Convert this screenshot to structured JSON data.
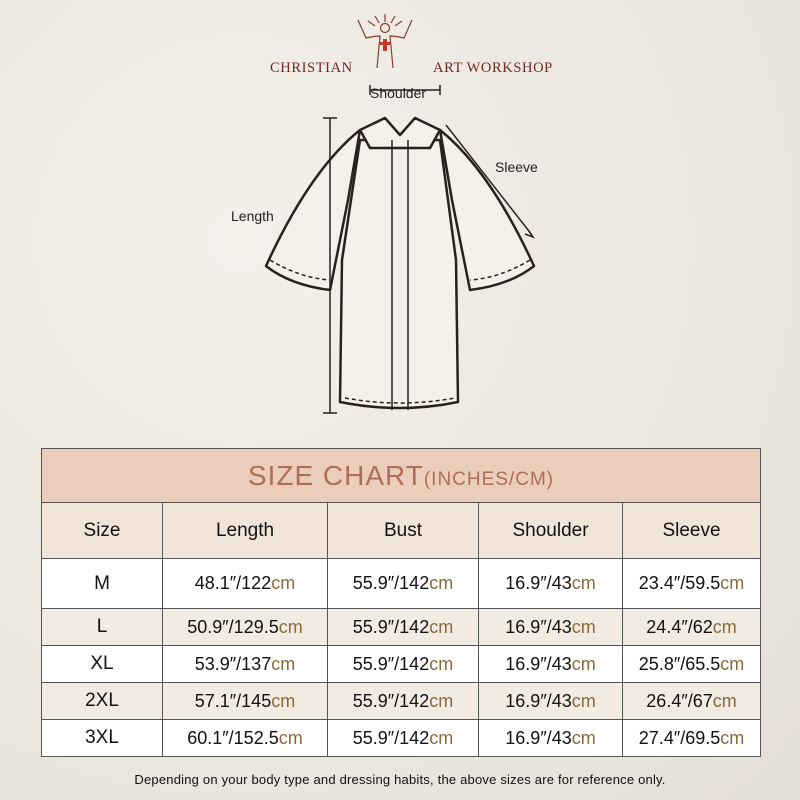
{
  "brand": {
    "left": "CHRISTIAN",
    "right": "ART WORKSHOP",
    "logo_icon": "jesus-open-arms-cross-icon"
  },
  "diagram_labels": {
    "shoulder": "Shoulder",
    "sleeve": "Sleeve",
    "length": "Length"
  },
  "table": {
    "title": "SIZE CHART",
    "title_units": "(INCHES/CM)",
    "headers": [
      "Size",
      "Length",
      "Bust",
      "Shoulder",
      "Sleeve"
    ],
    "rows": [
      {
        "size": "M",
        "cells": [
          [
            "48.1″/122",
            "cm"
          ],
          [
            "55.9″/142",
            "cm"
          ],
          [
            "16.9″/43",
            "cm"
          ],
          [
            "23.4″/59.5",
            "cm"
          ]
        ]
      },
      {
        "size": "L",
        "cells": [
          [
            "50.9″/129.5",
            "cm"
          ],
          [
            "55.9″/142",
            "cm"
          ],
          [
            "16.9″/43",
            "cm"
          ],
          [
            "24.4″/62",
            "cm"
          ]
        ]
      },
      {
        "size": "XL",
        "cells": [
          [
            "53.9″/137",
            "cm"
          ],
          [
            "55.9″/142",
            "cm"
          ],
          [
            "16.9″/43",
            "cm"
          ],
          [
            "25.8″/65.5",
            "cm"
          ]
        ]
      },
      {
        "size": "2XL",
        "cells": [
          [
            "57.1″/145",
            "cm"
          ],
          [
            "55.9″/142",
            "cm"
          ],
          [
            "16.9″/43",
            "cm"
          ],
          [
            "26.4″/67",
            "cm"
          ]
        ]
      },
      {
        "size": "3XL",
        "cells": [
          [
            "60.1″/152.5",
            "cm"
          ],
          [
            "55.9″/142",
            "cm"
          ],
          [
            "16.9″/43",
            "cm"
          ],
          [
            "27.4″/69.5",
            "cm"
          ]
        ]
      }
    ],
    "colors": {
      "title_bg": "#ebcdbb",
      "title_text": "#b06e58",
      "header_bg": "#f1e5da",
      "cm_text": "#8a6a3c"
    }
  },
  "footnote": "Depending on your body type and dressing habits, the above sizes are for reference only."
}
